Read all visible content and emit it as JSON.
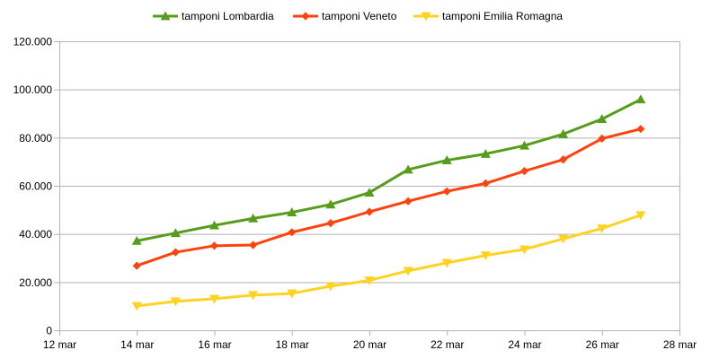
{
  "chart_data": {
    "type": "line",
    "x": [
      "14 mar",
      "15 mar",
      "16 mar",
      "17 mar",
      "18 mar",
      "19 mar",
      "20 mar",
      "21 mar",
      "22 mar",
      "23 mar",
      "24 mar",
      "25 mar",
      "26 mar",
      "27 mar"
    ],
    "x_day_values": [
      14,
      15,
      16,
      17,
      18,
      19,
      20,
      21,
      22,
      23,
      24,
      25,
      26,
      27
    ],
    "x_ticks": [
      "12 mar",
      "14 mar",
      "16 mar",
      "18 mar",
      "20 mar",
      "22 mar",
      "24 mar",
      "26 mar",
      "28 mar"
    ],
    "x_tick_days": [
      12,
      14,
      16,
      18,
      20,
      22,
      24,
      26,
      28
    ],
    "xlim": [
      12,
      28
    ],
    "y_ticks": [
      "0",
      "20.000",
      "40.000",
      "60.000",
      "80.000",
      "100.000",
      "120.000"
    ],
    "y_tick_values": [
      0,
      20000,
      40000,
      60000,
      80000,
      100000,
      120000
    ],
    "ylim": [
      0,
      120000
    ],
    "grid": "horizontal",
    "legend_position": "top",
    "series": [
      {
        "name": "tamponi Lombardia",
        "color": "#579d1c",
        "marker": "triangle-up",
        "values": [
          37138,
          40369,
          43565,
          46449,
          48983,
          52244,
          57174,
          66730,
          70598,
          73242,
          76695,
          81459,
          87713,
          95860
        ]
      },
      {
        "name": "tamponi Veneto",
        "color": "#ff420e",
        "marker": "diamond",
        "values": [
          26798,
          32400,
          35100,
          35400,
          40700,
          44500,
          49200,
          53600,
          57700,
          61000,
          66100,
          70900,
          79600,
          83600
        ]
      },
      {
        "name": "tamponi Emilia Romagna",
        "color": "#ffd320",
        "marker": "triangle-down",
        "values": [
          10100,
          12000,
          13100,
          14600,
          15300,
          18300,
          20700,
          24700,
          28000,
          31100,
          33600,
          38000,
          42300,
          47800
        ]
      }
    ]
  }
}
